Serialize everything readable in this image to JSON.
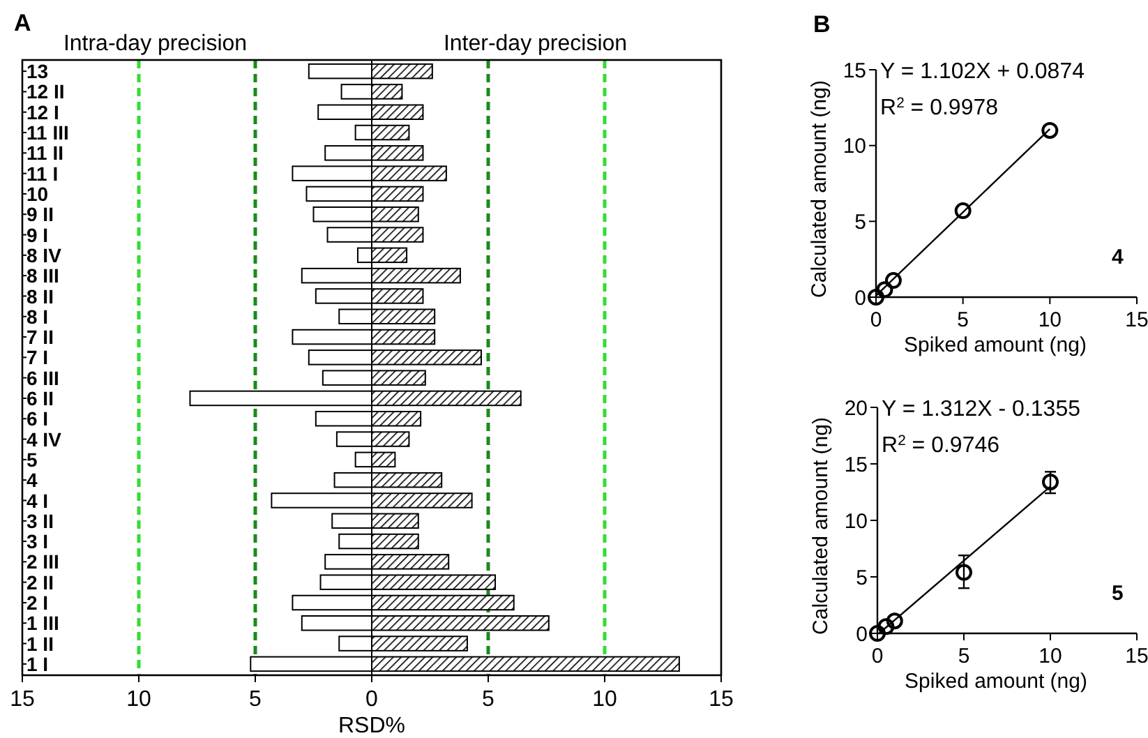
{
  "chart_data": [
    {
      "type": "bar",
      "title": "A",
      "orientation": "horizontal",
      "stacked": true,
      "xlabel": "RSD%",
      "categories": [
        "13",
        "12 II",
        "12 I",
        "11 III",
        "11 II",
        "11 I",
        "10",
        "9 II",
        "9 I",
        "8 IV",
        "8 III",
        "8 II",
        "8 I",
        "7 II",
        "7 I",
        "6 III",
        "6 II",
        "6 I",
        "4 IV",
        "5",
        "4",
        "4 I",
        "3 II",
        "3 I",
        "2 III",
        "2 II",
        "2 I",
        "1 III",
        "1 II",
        "1 I"
      ],
      "series": [
        {
          "color": "#ffffff",
          "values": [
            -2.7,
            -1.3,
            -2.3,
            -0.7,
            -2.0,
            -3.4,
            -2.8,
            -2.5,
            -1.9,
            -0.6,
            -3.0,
            -2.4,
            -1.4,
            -3.4,
            -2.7,
            -2.1,
            -7.8,
            -2.4,
            -1.5,
            -0.7,
            -1.6,
            -4.3,
            -1.7,
            -1.4,
            -2.0,
            -2.2,
            -3.4,
            -3.0,
            -1.4,
            -5.2
          ]
        },
        {
          "color": "#000000",
          "values": [
            2.6,
            1.3,
            2.2,
            1.6,
            2.2,
            3.2,
            2.2,
            2.0,
            2.2,
            1.5,
            3.8,
            2.2,
            2.7,
            2.7,
            4.7,
            2.3,
            6.4,
            2.1,
            1.6,
            1.0,
            3.0,
            4.3,
            2.0,
            2.0,
            3.3,
            5.3,
            6.1,
            7.6,
            4.1,
            13.2
          ]
        }
      ],
      "xlim": [
        -15,
        15
      ],
      "xticks": [
        {
          "value": -15,
          "label": "15"
        },
        {
          "value": -10,
          "label": "10"
        },
        {
          "value": -5,
          "label": "5"
        },
        0,
        5,
        10,
        15
      ],
      "ref_lines": [
        {
          "axis": "x",
          "value": -10,
          "color": "#33dd33",
          "line_style": "dashed"
        },
        {
          "axis": "x",
          "value": -5,
          "color": "#1a8a1a",
          "line_style": "dashed"
        },
        {
          "axis": "x",
          "value": 5,
          "color": "#1a8a1a",
          "line_style": "dashed"
        },
        {
          "axis": "x",
          "value": 10,
          "color": "#33dd33",
          "line_style": "dashed"
        }
      ],
      "annotations": [
        "Intra-day precision",
        "Inter-day precision"
      ]
    },
    {
      "type": "scatter",
      "title": "B",
      "xlabel": "Spiked amount (ng)",
      "ylabel": "Calculated amount (ng)",
      "series": [
        {
          "type": "scatter",
          "marker": "circle",
          "color": "#000000",
          "x": [
            0,
            0.5,
            1,
            5,
            10
          ],
          "values": [
            0,
            0.5,
            1.1,
            5.7,
            11.0
          ]
        },
        {
          "type": "line",
          "color": "#000000",
          "x": [
            0,
            10
          ],
          "values": [
            0.1,
            11.1
          ]
        }
      ],
      "xlim": [
        0,
        15
      ],
      "xticks": [
        0,
        5,
        10,
        15
      ],
      "ylim": [
        0,
        15
      ],
      "yticks": [
        0,
        5,
        10,
        15
      ],
      "annotations": [
        "Y = 1.102X + 0.0874",
        "R$^{2}$ = 0.9978",
        "4"
      ]
    },
    {
      "type": "scatter",
      "xlabel": "Spiked amount (ng)",
      "ylabel": "Calculated amount (ng)",
      "series": [
        {
          "type": "scatter",
          "marker": "circle",
          "color": "#000000",
          "x": [
            0,
            0.5,
            1,
            5,
            10
          ],
          "values": [
            0,
            0.6,
            1.1,
            5.4,
            13.4
          ],
          "errors": [
            null,
            null,
            null,
            [
              4.0,
              6.9
            ],
            [
              12.4,
              14.3
            ]
          ]
        },
        {
          "type": "line",
          "color": "#000000",
          "x": [
            0.1,
            10
          ],
          "values": [
            0,
            13
          ]
        }
      ],
      "xlim": [
        0,
        15
      ],
      "xticks": [
        0,
        5,
        10,
        15
      ],
      "ylim": [
        0,
        20
      ],
      "yticks": [
        0,
        5,
        10,
        15,
        20
      ],
      "annotations": [
        "Y = 1.312X - 0.1355",
        "R$^{2}$ = 0.9746",
        "5"
      ]
    }
  ]
}
